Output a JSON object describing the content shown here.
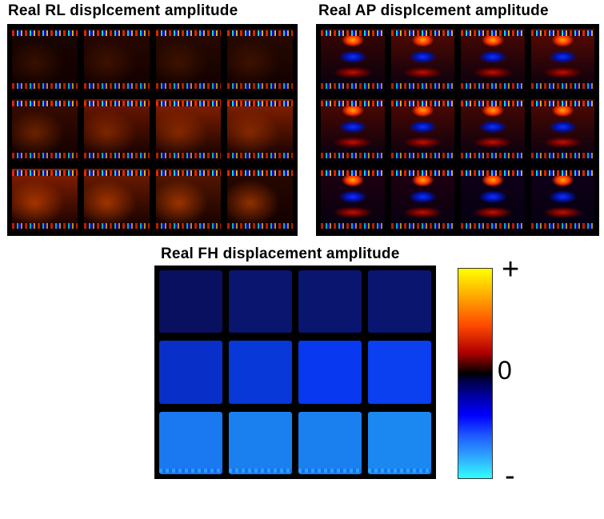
{
  "panels": {
    "rl": {
      "title": "Real RL displcement amplitude"
    },
    "ap": {
      "title": "Real AP displcement amplitude"
    },
    "fh": {
      "title": "Real FH displacement amplitude"
    }
  },
  "colorbar": {
    "plus_label": "+",
    "zero_label": "0",
    "minus_label": "-",
    "colors": {
      "max": "#ffff00",
      "high": "#ff4a00",
      "zero": "#000000",
      "low": "#0000ff",
      "min": "#30ffff"
    }
  },
  "tile_colors": {
    "rl": [
      [
        "#1a0500",
        "#2a0800",
        "#2a0a00",
        "#2a0a00"
      ],
      [
        "#3a0c00",
        "#701800",
        "#8a2200",
        "#8a2200"
      ],
      [
        "#8a2000",
        "#701c00",
        "#5a1800",
        "#2a0800"
      ]
    ],
    "ap": [
      [
        "#3a0500",
        "#550900",
        "#4a0700",
        "#5a0a00"
      ],
      [
        "#500800",
        "#520800",
        "#480800",
        "#500900"
      ],
      [
        "#200010",
        "#200010",
        "#100018",
        "#100018"
      ]
    ],
    "fh": [
      [
        "#0a1060",
        "#0a1570",
        "#0a1570",
        "#0a1570"
      ],
      [
        "#0830c8",
        "#0838d8",
        "#0838f0",
        "#0a40f0"
      ],
      [
        "#1a78f0",
        "#1a80f0",
        "#1a80f0",
        "#1a88f0"
      ]
    ]
  }
}
